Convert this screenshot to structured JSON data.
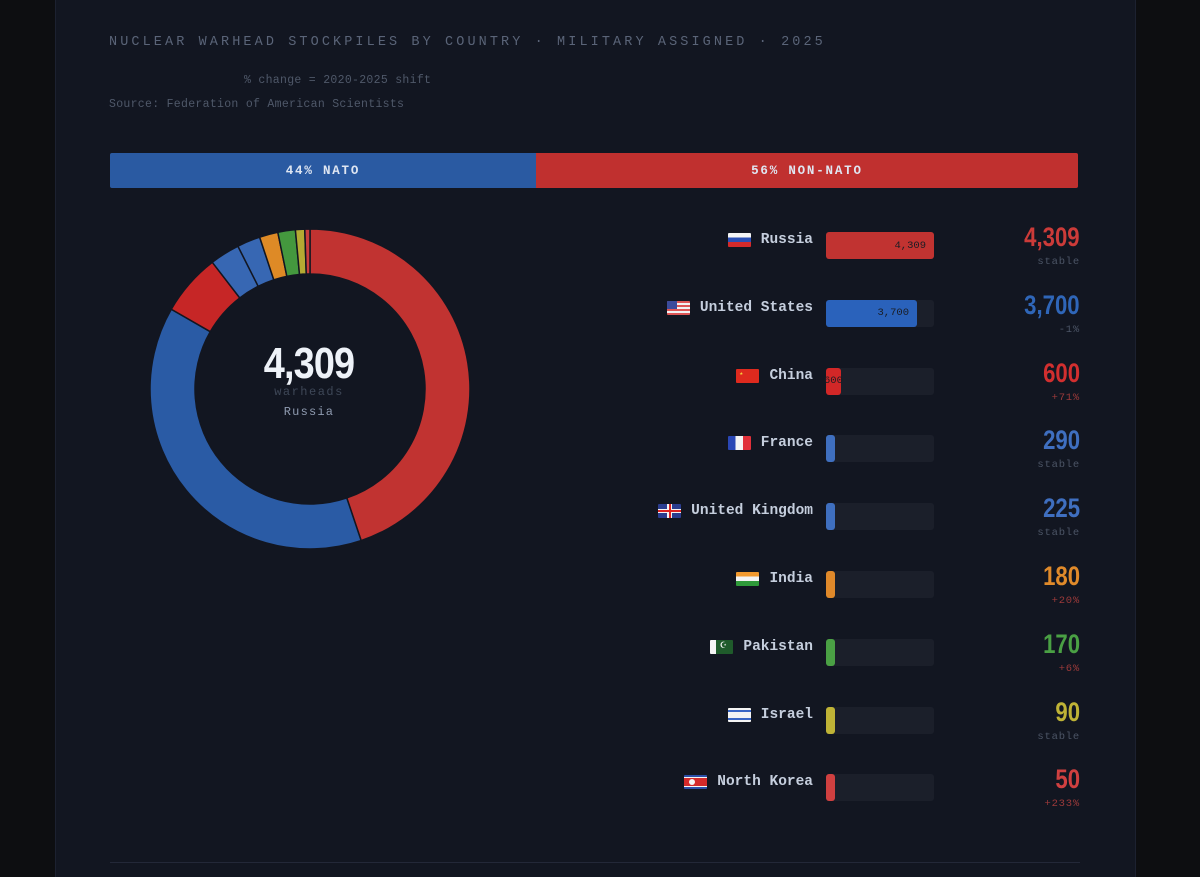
{
  "header": {
    "title": "NUCLEAR WARHEAD STOCKPILES BY COUNTRY · MILITARY ASSIGNED · 2025",
    "subnote": "% change = 2020-2025 shift",
    "source": "Source: Federation of American Scientists"
  },
  "split": {
    "nato": {
      "label": "44% NATO",
      "percent": 44,
      "color": "#2a5aa2"
    },
    "non_nato": {
      "label": "56% NON-NATO",
      "percent": 56,
      "color": "#c0302f"
    }
  },
  "donut": {
    "value": "4,309",
    "unit": "warheads",
    "country": "Russia"
  },
  "colors": {
    "russia": "#c13331",
    "us": "#2a5ba5",
    "china": "#c62626",
    "france": "#3767b3",
    "uk": "#3767b3",
    "india": "#de8a26",
    "pakistan": "#44983e",
    "israel": "#b4aa33",
    "north_korea": "#c93d3d",
    "stable_text": "#4c5566",
    "increase_text": "#a94040",
    "decrease_text": "#4c5566"
  },
  "rows": [
    {
      "country": "Russia",
      "flag": "russia-flag",
      "bar_label": "4,309",
      "value": "4,309",
      "change": "stable",
      "color": "#c13331",
      "value_color": "#cc3b39",
      "change_color": "#4c5566"
    },
    {
      "country": "United States",
      "flag": "usa-flag",
      "bar_label": "3,700",
      "value": "3,700",
      "change": "-1%",
      "color": "#2a62bb",
      "value_color": "#2f66b8",
      "change_color": "#4c5566"
    },
    {
      "country": "China",
      "flag": "china-flag",
      "bar_label": "600",
      "value": "600",
      "change": "+71%",
      "color": "#d22727",
      "value_color": "#d22f2f",
      "change_color": "#9c3a3a"
    },
    {
      "country": "France",
      "flag": "france-flag",
      "bar_label": "",
      "value": "290",
      "change": "stable",
      "color": "#3f6fbf",
      "value_color": "#3f6fc0",
      "change_color": "#4c5566"
    },
    {
      "country": "United Kingdom",
      "flag": "uk-flag",
      "bar_label": "",
      "value": "225",
      "change": "stable",
      "color": "#3f6fbf",
      "value_color": "#3f6fc0",
      "change_color": "#4c5566"
    },
    {
      "country": "India",
      "flag": "india-flag",
      "bar_label": "",
      "value": "180",
      "change": "+20%",
      "color": "#e0892a",
      "value_color": "#e08a2a",
      "change_color": "#9c3a3a"
    },
    {
      "country": "Pakistan",
      "flag": "pakistan-flag",
      "bar_label": "",
      "value": "170",
      "change": "+6%",
      "color": "#4aa044",
      "value_color": "#4aa044",
      "change_color": "#9c3a3a"
    },
    {
      "country": "Israel",
      "flag": "israel-flag",
      "bar_label": "",
      "value": "90",
      "change": "stable",
      "color": "#bfb336",
      "value_color": "#bfb336",
      "change_color": "#4c5566"
    },
    {
      "country": "North Korea",
      "flag": "north-korea-flag",
      "bar_label": "",
      "value": "50",
      "change": "+233%",
      "color": "#d04040",
      "value_color": "#d04040",
      "change_color": "#9c3a3a"
    }
  ],
  "chart_data": [
    {
      "type": "pie",
      "title": "NUCLEAR WARHEAD STOCKPILES BY COUNTRY · MILITARY ASSIGNED · 2025",
      "subtitle": "Source: Federation of American Scientists",
      "categories": [
        "Russia",
        "United States",
        "China",
        "France",
        "United Kingdom",
        "India",
        "Pakistan",
        "Israel",
        "North Korea"
      ],
      "values": [
        4309,
        3700,
        600,
        290,
        225,
        180,
        170,
        90,
        50
      ],
      "colors": [
        "#c13331",
        "#2a5ba5",
        "#c62626",
        "#3767b3",
        "#3767b3",
        "#de8a26",
        "#44983e",
        "#b4aa33",
        "#c93d3d"
      ],
      "donut": true,
      "center_label": "4,309 warheads Russia"
    },
    {
      "type": "bar",
      "orientation": "horizontal",
      "categories": [
        "Russia",
        "United States",
        "China",
        "France",
        "United Kingdom",
        "India",
        "Pakistan",
        "Israel",
        "North Korea"
      ],
      "values": [
        4309,
        3700,
        600,
        290,
        225,
        180,
        170,
        90,
        50
      ],
      "change_2020_2025": [
        "stable",
        "-1%",
        "+71%",
        "stable",
        "stable",
        "+20%",
        "+6%",
        "stable",
        "+233%"
      ],
      "xlim": [
        0,
        4309
      ]
    },
    {
      "type": "bar",
      "orientation": "stacked-horizontal",
      "categories": [
        "NATO",
        "NON-NATO"
      ],
      "values": [
        44,
        56
      ],
      "unit": "%"
    }
  ]
}
